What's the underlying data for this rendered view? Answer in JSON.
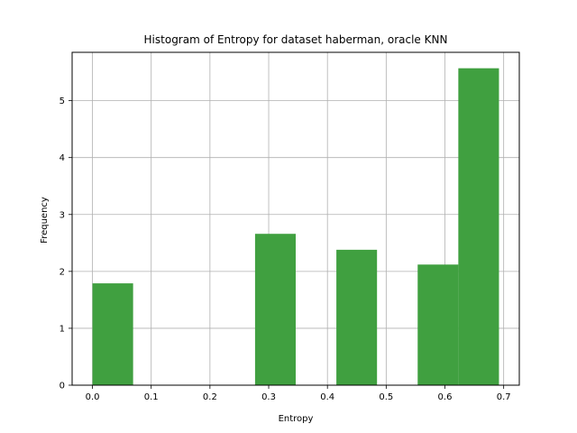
{
  "chart_data": {
    "type": "bar",
    "title": "Histogram of Entropy for dataset haberman, oracle KNN",
    "xlabel": "Entropy",
    "ylabel": "Frequency",
    "xlim": [
      -0.0346,
      0.7266
    ],
    "ylim": [
      0,
      5.85
    ],
    "grid": true,
    "bar_color": "#40a040",
    "bins": [
      {
        "x0": 0.0,
        "x1": 0.0692,
        "value": 1.79
      },
      {
        "x0": 0.0692,
        "x1": 0.1384,
        "value": 0
      },
      {
        "x0": 0.1384,
        "x1": 0.2076,
        "value": 0
      },
      {
        "x0": 0.2076,
        "x1": 0.2768,
        "value": 0
      },
      {
        "x0": 0.2768,
        "x1": 0.346,
        "value": 2.66
      },
      {
        "x0": 0.346,
        "x1": 0.4152,
        "value": 0
      },
      {
        "x0": 0.4152,
        "x1": 0.4844,
        "value": 2.38
      },
      {
        "x0": 0.4844,
        "x1": 0.5536,
        "value": 0
      },
      {
        "x0": 0.5536,
        "x1": 0.6228,
        "value": 2.12
      },
      {
        "x0": 0.6228,
        "x1": 0.692,
        "value": 5.57
      }
    ],
    "xticks": [
      {
        "value": 0.0,
        "label": "0.0"
      },
      {
        "value": 0.1,
        "label": "0.1"
      },
      {
        "value": 0.2,
        "label": "0.2"
      },
      {
        "value": 0.3,
        "label": "0.3"
      },
      {
        "value": 0.4,
        "label": "0.4"
      },
      {
        "value": 0.5,
        "label": "0.5"
      },
      {
        "value": 0.6,
        "label": "0.6"
      },
      {
        "value": 0.7,
        "label": "0.7"
      }
    ],
    "yticks": [
      {
        "value": 0,
        "label": "0"
      },
      {
        "value": 1,
        "label": "1"
      },
      {
        "value": 2,
        "label": "2"
      },
      {
        "value": 3,
        "label": "3"
      },
      {
        "value": 4,
        "label": "4"
      },
      {
        "value": 5,
        "label": "5"
      }
    ]
  }
}
